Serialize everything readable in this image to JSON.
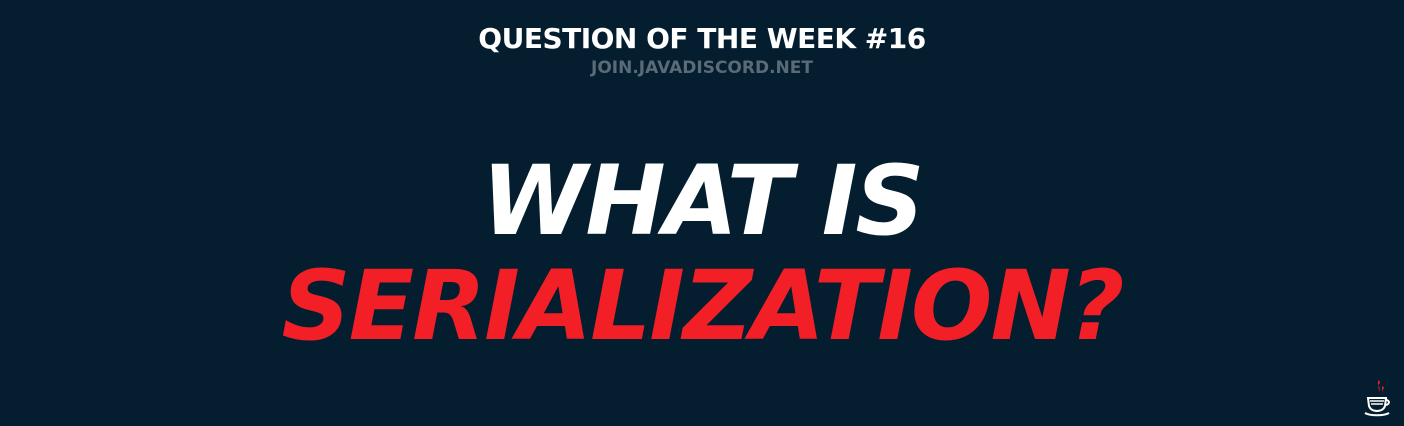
{
  "header": {
    "title": "QUESTION OF THE WEEK #16",
    "subtitle": "JOIN.JAVADISCORD.NET"
  },
  "headline": {
    "line1": "WHAT IS",
    "line2": "SERIALIZATION?"
  },
  "logo": {
    "icon": "java-coffee-cup-icon"
  },
  "colors": {
    "background": "#041e2f",
    "primary_text": "#ffffff",
    "accent": "#f21f27",
    "muted_text": "#5a6b78"
  }
}
